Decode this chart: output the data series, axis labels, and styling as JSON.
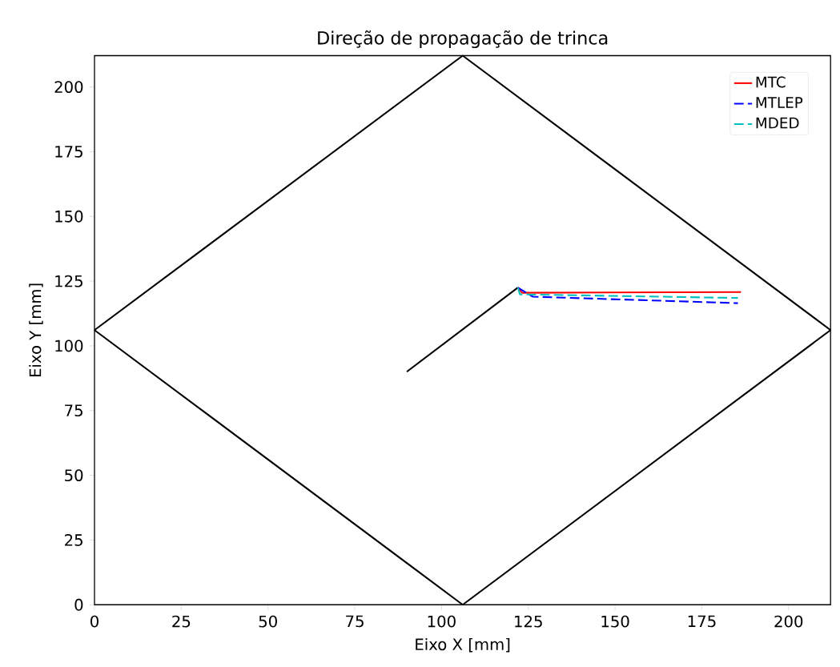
{
  "chart_data": {
    "type": "line",
    "title": "Direção de propagação de trinca",
    "xlabel": "Eixo X [mm]",
    "ylabel": "Eixo Y [mm]",
    "xlim": [
      0,
      212.1
    ],
    "ylim": [
      0,
      212.1
    ],
    "xticks": [
      0,
      25,
      50,
      75,
      100,
      125,
      150,
      175,
      200
    ],
    "yticks": [
      0,
      25,
      50,
      75,
      100,
      125,
      150,
      175,
      200
    ],
    "grid": false,
    "legend": "top right",
    "marker": "none",
    "series": [
      {
        "color": "#000000",
        "line_style": "solid",
        "x": [
          0,
          106.1,
          212.1
        ],
        "values": [
          106.1,
          212.1,
          106.1
        ]
      },
      {
        "color": "#000000",
        "line_style": "solid",
        "x": [
          0,
          106.1,
          212.1
        ],
        "values": [
          106.1,
          0,
          106.1
        ]
      },
      {
        "color": "#000000",
        "line_style": "solid",
        "x": [
          90,
          122
        ],
        "values": [
          90,
          122.5
        ]
      },
      {
        "name": "MTC",
        "color": "#ff0000",
        "line_style": "solid",
        "x": [
          122,
          123.2,
          186.3
        ],
        "values": [
          122.5,
          120.5,
          120.8
        ]
      },
      {
        "name": "MTLEP",
        "color": "#0000ff",
        "line_style": "dashed",
        "x": [
          122,
          126.3,
          185.4
        ],
        "values": [
          122.5,
          119.0,
          116.5
        ]
      },
      {
        "name": "MDED",
        "color": "#00bfbf",
        "line_style": "dashed",
        "x": [
          122,
          122.6,
          185.4
        ],
        "values": [
          122.5,
          119.9,
          118.5
        ]
      }
    ]
  }
}
